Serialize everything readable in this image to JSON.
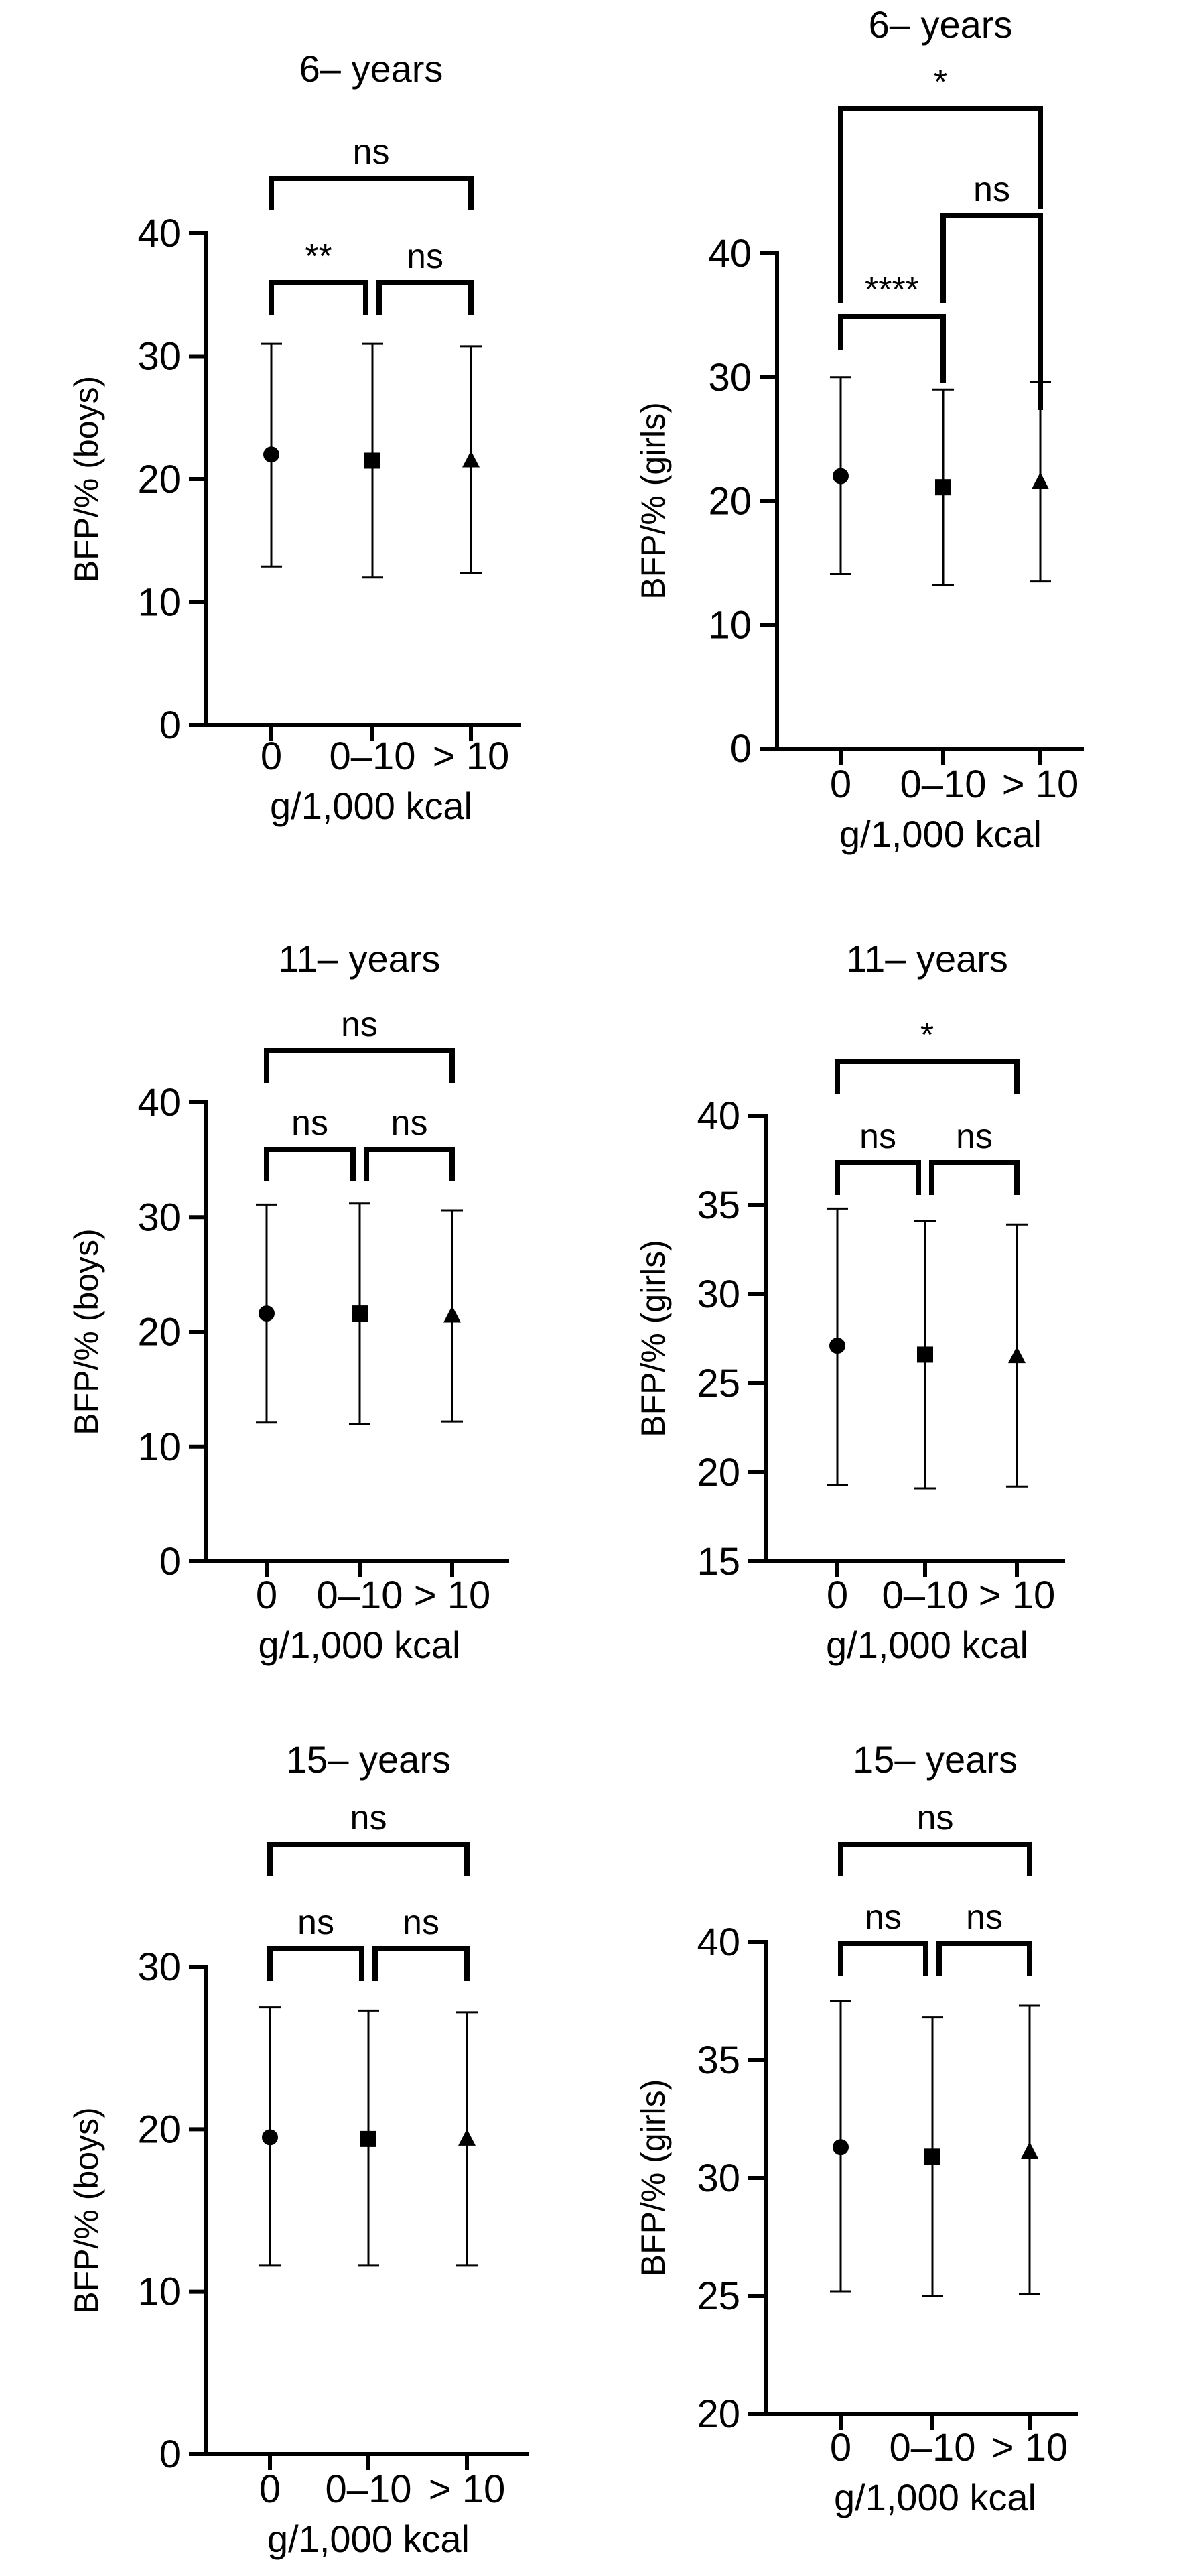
{
  "chart_data": [
    {
      "type": "scatter",
      "title": "6– years",
      "xlabel": "g/1,000 kcal",
      "ylabel": "BFP/% (boys)",
      "categories": [
        "0",
        "0–10",
        "> 10"
      ],
      "ylim": [
        0,
        40
      ],
      "yticks": [
        0,
        10,
        20,
        30,
        40
      ],
      "markers": [
        "circle",
        "square",
        "triangle"
      ],
      "series": [
        {
          "mean": [
            22.0,
            21.5,
            21.5
          ],
          "lower": [
            12.9,
            12.0,
            12.4
          ],
          "upper": [
            31.0,
            31.0,
            30.8
          ]
        }
      ],
      "comparisons": [
        {
          "from": 0,
          "to": 1,
          "label": "**",
          "level": 0
        },
        {
          "from": 1,
          "to": 2,
          "label": "ns",
          "level": 0
        },
        {
          "from": 0,
          "to": 2,
          "label": "ns",
          "level": 1
        }
      ]
    },
    {
      "type": "scatter",
      "title": "6– years",
      "xlabel": "g/1,000 kcal",
      "ylabel": "BFP/% (girls)",
      "categories": [
        "0",
        "0–10",
        "> 10"
      ],
      "ylim": [
        0,
        40
      ],
      "yticks": [
        0,
        10,
        20,
        30,
        40
      ],
      "markers": [
        "circle",
        "square",
        "triangle"
      ],
      "series": [
        {
          "mean": [
            22.0,
            21.1,
            21.5
          ],
          "lower": [
            14.1,
            13.2,
            13.5
          ],
          "upper": [
            30.0,
            29.0,
            29.6
          ]
        }
      ],
      "comparisons": [
        {
          "from": 0,
          "to": 1,
          "label": "****",
          "level": 0
        },
        {
          "from": 1,
          "to": 2,
          "label": "ns",
          "level": 1
        },
        {
          "from": 0,
          "to": 2,
          "label": "*",
          "level": 2
        }
      ]
    },
    {
      "type": "scatter",
      "title": "11– years",
      "xlabel": "g/1,000 kcal",
      "ylabel": "BFP/% (boys)",
      "categories": [
        "0",
        "0–10",
        "> 10"
      ],
      "ylim": [
        0,
        40
      ],
      "yticks": [
        0,
        10,
        20,
        30,
        40
      ],
      "markers": [
        "circle",
        "square",
        "triangle"
      ],
      "series": [
        {
          "mean": [
            21.6,
            21.6,
            21.4
          ],
          "lower": [
            12.1,
            12.0,
            12.2
          ],
          "upper": [
            31.1,
            31.2,
            30.6
          ]
        }
      ],
      "comparisons": [
        {
          "from": 0,
          "to": 1,
          "label": "ns",
          "level": 0
        },
        {
          "from": 1,
          "to": 2,
          "label": "ns",
          "level": 0
        },
        {
          "from": 0,
          "to": 2,
          "label": "ns",
          "level": 1
        }
      ]
    },
    {
      "type": "scatter",
      "title": "11– years",
      "xlabel": "g/1,000 kcal",
      "ylabel": "BFP/% (girls)",
      "categories": [
        "0",
        "0–10",
        "> 10"
      ],
      "ylim": [
        15,
        40
      ],
      "yticks": [
        15,
        20,
        25,
        30,
        35,
        40
      ],
      "markers": [
        "circle",
        "square",
        "triangle"
      ],
      "series": [
        {
          "mean": [
            27.1,
            26.6,
            26.5
          ],
          "lower": [
            19.3,
            19.1,
            19.2
          ],
          "upper": [
            34.8,
            34.1,
            33.9
          ]
        }
      ],
      "comparisons": [
        {
          "from": 0,
          "to": 1,
          "label": "ns",
          "level": 0
        },
        {
          "from": 1,
          "to": 2,
          "label": "ns",
          "level": 0
        },
        {
          "from": 0,
          "to": 2,
          "label": "*",
          "level": 1
        }
      ]
    },
    {
      "type": "scatter",
      "title": "15– years",
      "xlabel": "g/1,000 kcal",
      "ylabel": "BFP/% (boys)",
      "categories": [
        "0",
        "0–10",
        "> 10"
      ],
      "ylim": [
        0,
        30
      ],
      "yticks": [
        0,
        10,
        20,
        30
      ],
      "markers": [
        "circle",
        "square",
        "triangle"
      ],
      "series": [
        {
          "mean": [
            19.5,
            19.4,
            19.4
          ],
          "lower": [
            11.6,
            11.6,
            11.6
          ],
          "upper": [
            27.5,
            27.3,
            27.2
          ]
        }
      ],
      "comparisons": [
        {
          "from": 0,
          "to": 1,
          "label": "ns",
          "level": 0
        },
        {
          "from": 1,
          "to": 2,
          "label": "ns",
          "level": 0
        },
        {
          "from": 0,
          "to": 2,
          "label": "ns",
          "level": 1
        }
      ]
    },
    {
      "type": "scatter",
      "title": "15– years",
      "xlabel": "g/1,000 kcal",
      "ylabel": "BFP/% (girls)",
      "categories": [
        "0",
        "0–10",
        "> 10"
      ],
      "ylim": [
        20,
        40
      ],
      "yticks": [
        20,
        25,
        30,
        35,
        40
      ],
      "markers": [
        "circle",
        "square",
        "triangle"
      ],
      "series": [
        {
          "mean": [
            31.3,
            30.9,
            31.1
          ],
          "lower": [
            25.2,
            25.0,
            25.1
          ],
          "upper": [
            37.5,
            36.8,
            37.3
          ]
        }
      ],
      "comparisons": [
        {
          "from": 0,
          "to": 1,
          "label": "ns",
          "level": 0
        },
        {
          "from": 1,
          "to": 2,
          "label": "ns",
          "level": 0
        },
        {
          "from": 0,
          "to": 2,
          "label": "ns",
          "level": 1
        }
      ]
    }
  ]
}
